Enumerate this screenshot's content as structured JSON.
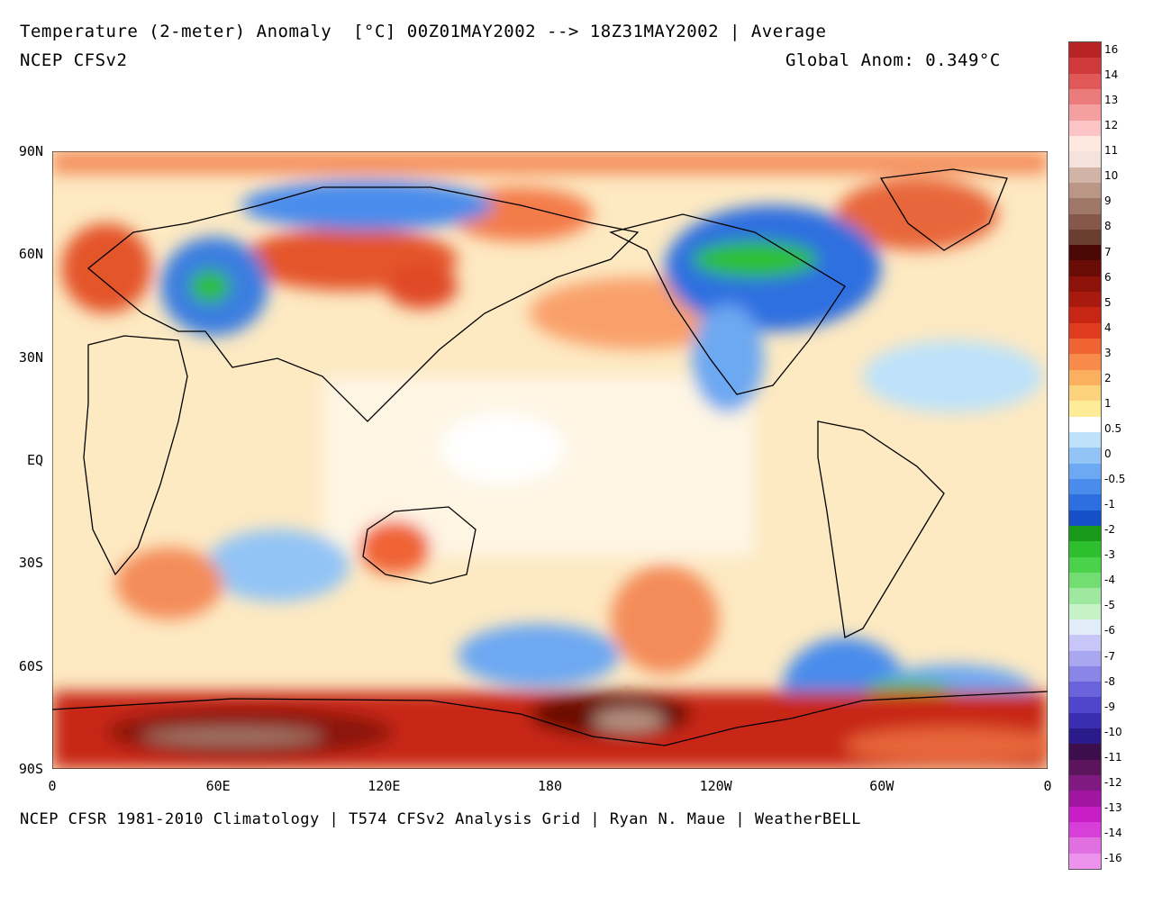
{
  "header": {
    "title": "Temperature (2-meter) Anomaly  [°C] 00Z01MAY2002 --> 18Z31MAY2002 | Average",
    "model": "NCEP CFSv2",
    "global_anom": "Global Anom: 0.349°C"
  },
  "footer": {
    "credits": "NCEP CFSR 1981-2010 Climatology | T574 CFSv2 Analysis Grid | Ryan N. Maue | WeatherBELL"
  },
  "axes": {
    "y_labels": [
      "90N",
      "60N",
      "30N",
      "EQ",
      "30S",
      "60S",
      "90S"
    ],
    "x_labels": [
      "0",
      "60E",
      "120E",
      "180",
      "120W",
      "60W",
      "0"
    ]
  },
  "legend": {
    "colors": [
      "#ed93ed",
      "#e070e0",
      "#d83fd8",
      "#c81ec8",
      "#a016a0",
      "#801980",
      "#5c145c",
      "#3c0f4c",
      "#2a1a8a",
      "#3a2eb0",
      "#4f46cc",
      "#6a64dc",
      "#8a86e8",
      "#a9a7f0",
      "#c8c6f8",
      "#e0ecf8",
      "#c6f2c6",
      "#9fe89f",
      "#72de72",
      "#4ad24a",
      "#2ebf2e",
      "#1a9a1a",
      "#1650c8",
      "#2d6fe0",
      "#4a8cec",
      "#6da8f2",
      "#92c4f6",
      "#bde2fa",
      "#ffffff",
      "#ffec98",
      "#fcd27c",
      "#fbb060",
      "#f88a4a",
      "#f06434",
      "#e03c20",
      "#c82614",
      "#a81a0e",
      "#8c120a",
      "#6a0c06",
      "#4a0804",
      "#6a3e30",
      "#85584a",
      "#a07868",
      "#b99686",
      "#d1b4a6",
      "#f3e3dc",
      "#ffe8e0",
      "#fcc4c4",
      "#f5a0a0",
      "#ec7c7c",
      "#e05858",
      "#d03a3a",
      "#b82424"
    ],
    "labels": [
      "16",
      "14",
      "13",
      "12",
      "11",
      "10",
      "9",
      "8",
      "7",
      "6",
      "5",
      "4",
      "3",
      "2",
      "1",
      "0.5",
      "0",
      "-0.5",
      "-1",
      "-2",
      "-3",
      "-4",
      "-5",
      "-6",
      "-7",
      "-8",
      "-9",
      "-10",
      "-11",
      "-12",
      "-13",
      "-14",
      "-16"
    ]
  }
}
